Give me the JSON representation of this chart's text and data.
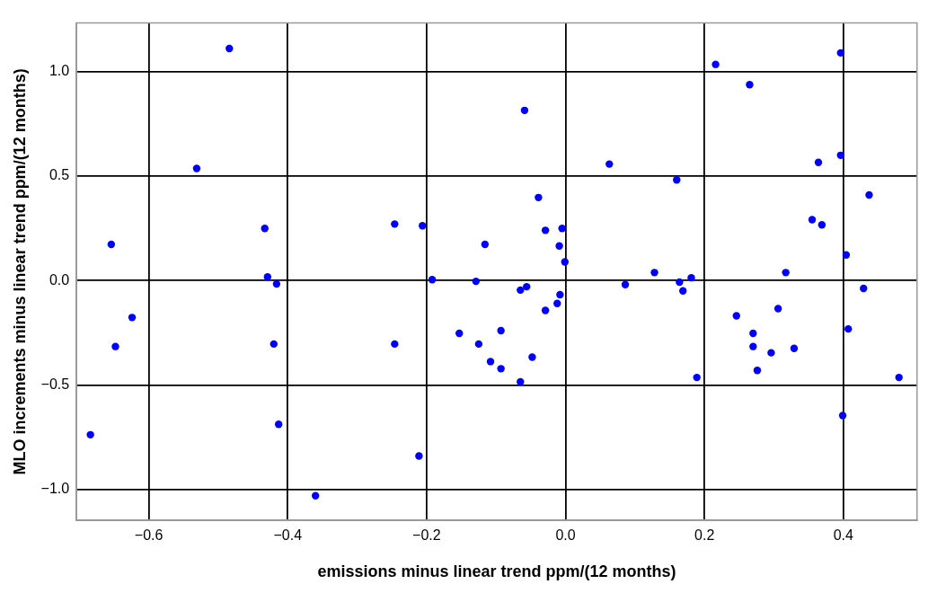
{
  "chart_data": {
    "type": "scatter",
    "xlabel": "emissions minus linear trend ppm/(12 months)",
    "ylabel": "MLO increments minus linear trend ppm/(12 months)",
    "xlim": [
      -0.704,
      0.506
    ],
    "ylim": [
      -1.148,
      1.232
    ],
    "xticks": [
      {
        "value": -0.6,
        "label": "−0.6"
      },
      {
        "value": -0.4,
        "label": "−0.4"
      },
      {
        "value": -0.2,
        "label": "−0.2"
      },
      {
        "value": 0,
        "label": "0.0"
      },
      {
        "value": 0.2,
        "label": "0.2"
      },
      {
        "value": 0.4,
        "label": "0.4"
      }
    ],
    "yticks": [
      {
        "value": -1,
        "label": "−1.0"
      },
      {
        "value": -0.5,
        "label": "−0.5"
      },
      {
        "value": 0,
        "label": "0.0"
      },
      {
        "value": 0.5,
        "label": "0.5"
      },
      {
        "value": 1,
        "label": "1.0"
      }
    ],
    "grid": true,
    "legend": false,
    "marker": "circle",
    "series": [
      {
        "color": "#0000ff",
        "x": [
          -0.684,
          -0.654,
          -0.648,
          -0.624,
          -0.531,
          -0.484,
          -0.433,
          -0.429,
          -0.416,
          -0.42,
          -0.413,
          -0.36,
          -0.246,
          -0.246,
          -0.211,
          -0.206,
          -0.192,
          -0.153,
          -0.129,
          -0.125,
          -0.116,
          -0.108,
          -0.093,
          -0.093,
          -0.065,
          -0.065,
          -0.059,
          -0.056,
          -0.048,
          -0.039,
          -0.029,
          -0.029,
          -0.012,
          -0.009,
          -0.008,
          -0.005,
          -0.001,
          0.063,
          0.086,
          0.128,
          0.16,
          0.164,
          0.169,
          0.181,
          0.189,
          0.216,
          0.246,
          0.265,
          0.27,
          0.27,
          0.276,
          0.296,
          0.306,
          0.317,
          0.329,
          0.355,
          0.364,
          0.369,
          0.396,
          0.396,
          0.399,
          0.404,
          0.407,
          0.429,
          0.437,
          0.48
        ],
        "values": [
          -0.738,
          0.173,
          -0.316,
          -0.177,
          0.536,
          1.11,
          0.249,
          0.017,
          -0.017,
          -0.304,
          -0.688,
          -1.03,
          0.27,
          -0.304,
          -0.84,
          0.262,
          0.004,
          -0.253,
          -0.004,
          -0.304,
          0.173,
          -0.388,
          -0.24,
          -0.422,
          -0.046,
          -0.485,
          0.814,
          -0.03,
          -0.367,
          0.397,
          0.24,
          -0.143,
          -0.11,
          0.165,
          -0.068,
          0.249,
          0.089,
          0.557,
          -0.02,
          0.038,
          0.481,
          -0.008,
          -0.05,
          0.013,
          -0.464,
          1.034,
          -0.169,
          0.937,
          -0.253,
          -0.316,
          -0.43,
          -0.346,
          -0.135,
          0.038,
          -0.325,
          0.291,
          0.565,
          0.266,
          1.089,
          0.599,
          -0.646,
          0.122,
          -0.232,
          -0.038,
          0.409,
          -0.464
        ]
      }
    ]
  }
}
